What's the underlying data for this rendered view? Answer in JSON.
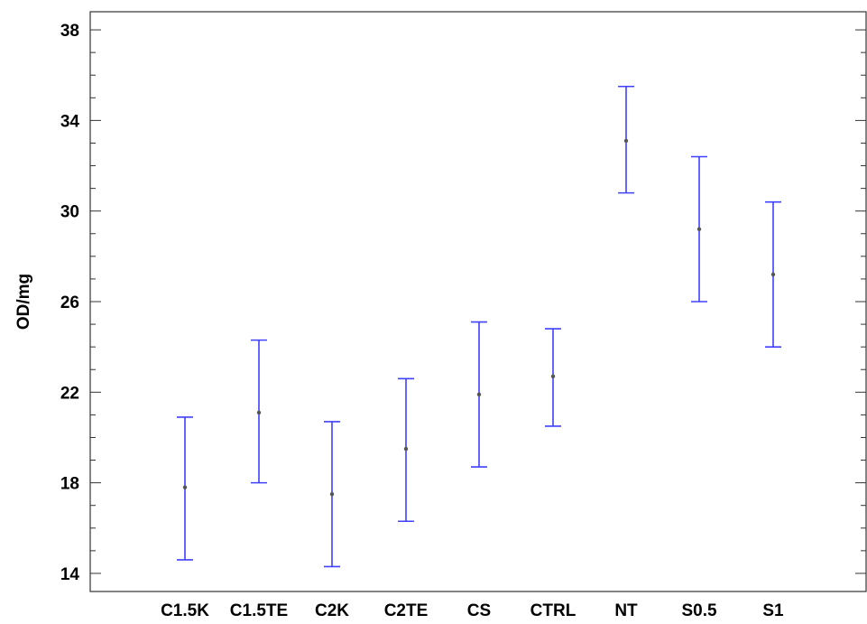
{
  "chart_data": {
    "type": "errorbar",
    "title": "",
    "xlabel": "",
    "ylabel": "OD/mg",
    "ylim": [
      13.2,
      38.8
    ],
    "yticks": [
      "14",
      "18",
      "22",
      "26",
      "30",
      "34",
      "38"
    ],
    "grid": false,
    "legend": "none",
    "colors": {
      "errorbar": "#4040ff",
      "point": "#555555",
      "frame": "#333333"
    },
    "categories": [
      "C1.5K",
      "C1.5TE",
      "C2K",
      "C2TE",
      "CS",
      "CTRL",
      "NT",
      "S0.5",
      "S1"
    ],
    "series": [
      {
        "mean": [
          17.8,
          21.1,
          17.5,
          19.5,
          21.9,
          22.7,
          33.1,
          29.2,
          27.2
        ],
        "lower": [
          14.6,
          18.0,
          14.3,
          16.3,
          18.7,
          20.5,
          30.8,
          26.0,
          24.0
        ],
        "upper": [
          20.9,
          24.3,
          20.7,
          22.6,
          25.1,
          24.8,
          35.5,
          32.4,
          30.4
        ]
      }
    ]
  }
}
